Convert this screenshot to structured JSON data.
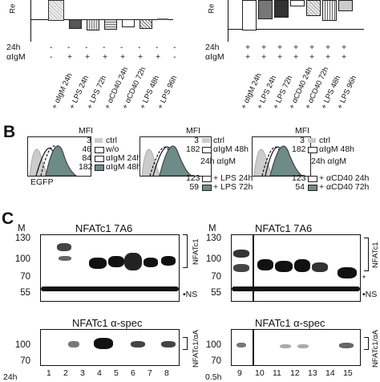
{
  "panelA": {
    "ylabel": "Re",
    "row_24h": "24h",
    "row_aigm": "αIgM",
    "left_24h": [
      "-",
      "-",
      "-",
      "-",
      "-",
      "-",
      "-",
      "-"
    ],
    "left_aigm": [
      "-",
      "+",
      "+",
      "+",
      "+",
      "+",
      "+",
      "-"
    ],
    "right_24h": [
      "+",
      "+",
      "+",
      "+",
      "+",
      "+",
      "+"
    ],
    "right_aigm": [
      "+",
      "+",
      "+",
      "+",
      "+",
      "+",
      "+"
    ],
    "left_xlabels": [
      "+ αIgM 24h",
      "+ LPS 24h",
      "+ LPS 72h",
      "+ αCD40 24h",
      "+ αCD40 72h",
      "+ LPS 48h",
      "+ LPS 96h"
    ],
    "right_xlabels": [
      "+ αIgM 24h",
      "+ LPS 24h",
      "+ LPS 72h",
      "+ αCD40 24h",
      "+ αCD40 72h",
      "+ LPS 48h",
      "+ LPS 96h"
    ]
  },
  "panelB": {
    "letter": "B",
    "xlabel": "EGFP",
    "mfi": "MFI",
    "h1": {
      "values": [
        "3",
        "46",
        "84",
        "182"
      ],
      "labels": [
        "ctrl",
        "w/o",
        "αIgM 24h",
        "αIgM 48h"
      ]
    },
    "h2": {
      "values": [
        "3",
        "182",
        "123",
        "59"
      ],
      "labels": [
        "ctrl",
        "αIgM 48h",
        "+ LPS 24h",
        "+ LPS 72h"
      ],
      "sub": "24h αIgM"
    },
    "h3": {
      "values": [
        "3",
        "182",
        "123",
        "54"
      ],
      "labels": [
        "ctrl",
        "αIgM 48h",
        "+ αCD40 24h",
        "+ αCD40 72h"
      ],
      "sub": "24h αIgM"
    }
  },
  "panelC": {
    "letter": "C",
    "m": "M",
    "top_left_title": "NFATc1 7A6",
    "top_right_title": "NFATc1 7A6",
    "bottom_left_title": "NFATc1 α-spec",
    "bottom_right_title": "NFATc1 α-spec",
    "mw_top": [
      "130",
      "100",
      "70",
      "55"
    ],
    "mw_bottom": [
      "100",
      "70"
    ],
    "side_top": "NFATc1",
    "side_bottom": "NFATc1/αA",
    "ns": "•NS",
    "star": "*",
    "lanes_left": [
      "1",
      "2",
      "3",
      "4",
      "5",
      "6",
      "7",
      "8"
    ],
    "lanes_right": [
      "9",
      "10",
      "11",
      "12",
      "13",
      "14",
      "15"
    ],
    "time_left": "24h",
    "time_right": "0.5h"
  }
}
